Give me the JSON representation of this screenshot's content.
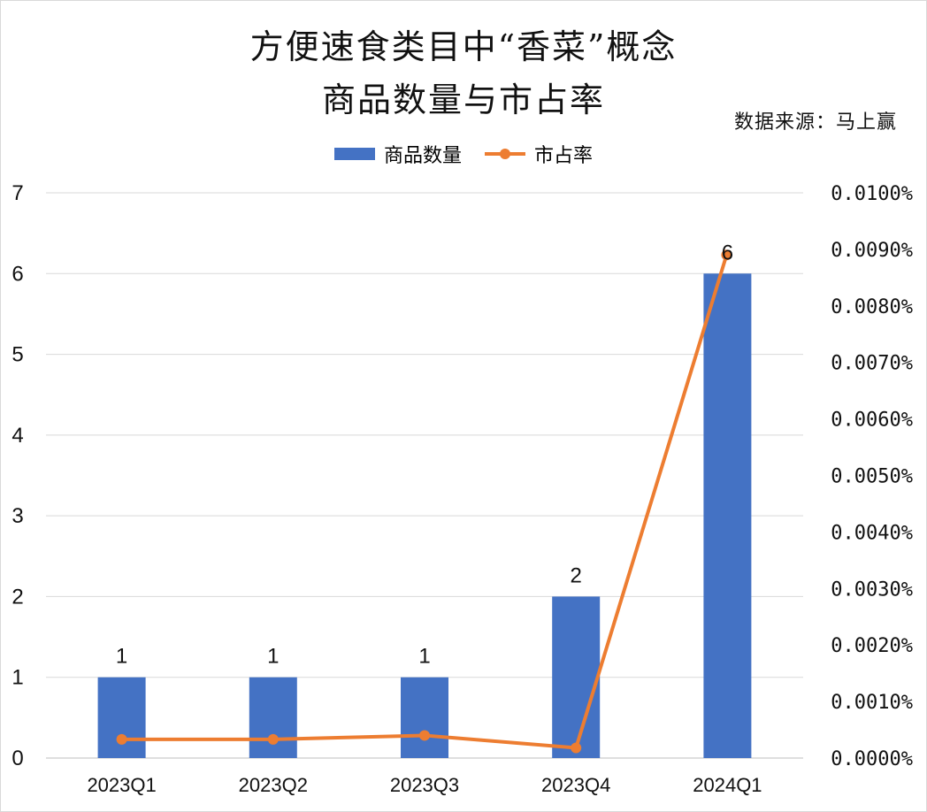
{
  "chart_data": {
    "type": "bar",
    "title_line1": "方便速食类目中“香菜”概念",
    "title_line2": "商品数量与市占率",
    "source": "数据来源：马上赢",
    "legend_position": "top",
    "grid": true,
    "categories": [
      "2023Q1",
      "2023Q2",
      "2023Q3",
      "2023Q4",
      "2024Q1"
    ],
    "series": [
      {
        "name": "商品数量",
        "type": "bar",
        "axis": "left",
        "color": "#4472c4",
        "values": [
          1,
          1,
          1,
          2,
          6
        ],
        "labels": [
          "1",
          "1",
          "1",
          "2",
          "6"
        ]
      },
      {
        "name": "市占率",
        "type": "line",
        "axis": "right",
        "color": "#ed7d31",
        "values": [
          0.00033,
          0.00033,
          0.0004,
          0.00018,
          0.0089
        ]
      }
    ],
    "ylim": [
      0,
      7
    ],
    "y_ticks": [
      "0",
      "1",
      "2",
      "3",
      "4",
      "5",
      "6",
      "7"
    ],
    "y2lim": [
      0,
      0.01
    ],
    "y2_ticks": [
      "0.0000%",
      "0.0010%",
      "0.0020%",
      "0.0030%",
      "0.0040%",
      "0.0050%",
      "0.0060%",
      "0.0070%",
      "0.0080%",
      "0.0090%",
      "0.0100%"
    ]
  }
}
